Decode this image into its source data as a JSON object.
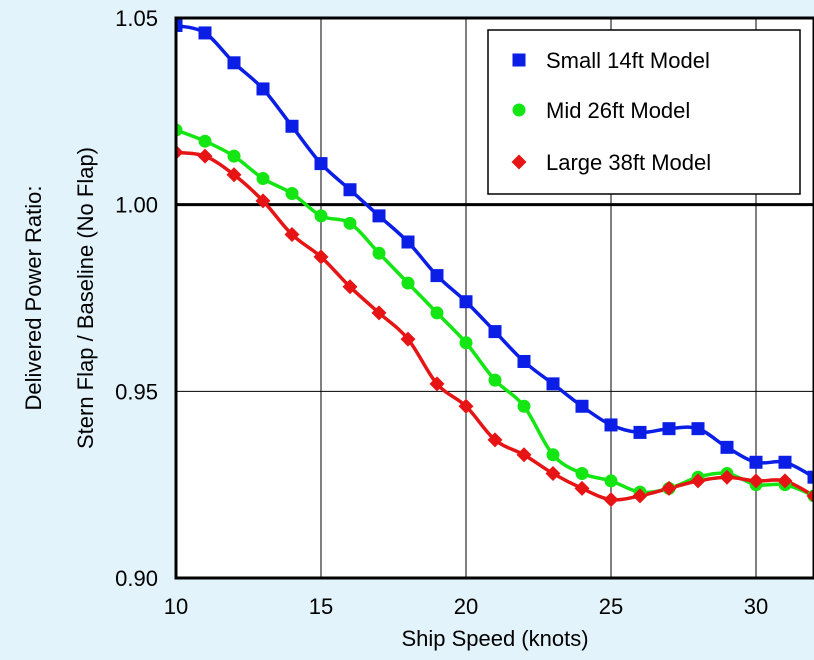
{
  "chart_data": {
    "type": "scatter",
    "title": "",
    "xlabel": "Ship Speed (knots)",
    "ylabel_lines": [
      "Delivered Power Ratio:",
      "Stern Flap / Baseline (No Flap)"
    ],
    "xlim": [
      10,
      32
    ],
    "ylim": [
      0.9,
      1.05
    ],
    "x_ticks": [
      10,
      15,
      20,
      25,
      30
    ],
    "x_tick_labels": [
      "10",
      "15",
      "20",
      "25",
      "30"
    ],
    "y_ticks": [
      0.9,
      0.95,
      1.0,
      1.05
    ],
    "y_tick_labels": [
      "0.90",
      "0.95",
      "1.00",
      "1.05"
    ],
    "reference_line_y": 1.0,
    "grid": true,
    "legend_position": "top-right",
    "series": [
      {
        "name": "Small 14ft Model",
        "marker": "square",
        "color": "#0a1ee6",
        "points": [
          [
            10,
            1.048
          ],
          [
            11,
            1.046
          ],
          [
            12,
            1.038
          ],
          [
            13,
            1.031
          ],
          [
            14,
            1.021
          ],
          [
            15,
            1.011
          ],
          [
            16,
            1.004
          ],
          [
            17,
            0.997
          ],
          [
            18,
            0.99
          ],
          [
            19,
            0.981
          ],
          [
            20,
            0.974
          ],
          [
            21,
            0.966
          ],
          [
            22,
            0.958
          ],
          [
            23,
            0.952
          ],
          [
            24,
            0.946
          ],
          [
            25,
            0.941
          ],
          [
            26,
            0.939
          ],
          [
            27,
            0.94
          ],
          [
            28,
            0.94
          ],
          [
            29,
            0.935
          ],
          [
            30,
            0.931
          ],
          [
            31,
            0.931
          ],
          [
            32,
            0.927
          ]
        ]
      },
      {
        "name": "Mid 26ft Model",
        "marker": "circle",
        "color": "#13e613",
        "points": [
          [
            10,
            1.02
          ],
          [
            11,
            1.017
          ],
          [
            12,
            1.013
          ],
          [
            13,
            1.007
          ],
          [
            14,
            1.003
          ],
          [
            15,
            0.997
          ],
          [
            16,
            0.995
          ],
          [
            17,
            0.987
          ],
          [
            18,
            0.979
          ],
          [
            19,
            0.971
          ],
          [
            20,
            0.963
          ],
          [
            21,
            0.953
          ],
          [
            22,
            0.946
          ],
          [
            23,
            0.933
          ],
          [
            24,
            0.928
          ],
          [
            25,
            0.926
          ],
          [
            26,
            0.923
          ],
          [
            27,
            0.924
          ],
          [
            28,
            0.927
          ],
          [
            29,
            0.928
          ],
          [
            30,
            0.925
          ],
          [
            31,
            0.925
          ],
          [
            32,
            0.922
          ]
        ]
      },
      {
        "name": "Large 38ft Model",
        "marker": "diamond",
        "color": "#e61414",
        "points": [
          [
            10,
            1.014
          ],
          [
            11,
            1.013
          ],
          [
            12,
            1.008
          ],
          [
            13,
            1.001
          ],
          [
            14,
            0.992
          ],
          [
            15,
            0.986
          ],
          [
            16,
            0.978
          ],
          [
            17,
            0.971
          ],
          [
            18,
            0.964
          ],
          [
            19,
            0.952
          ],
          [
            20,
            0.946
          ],
          [
            21,
            0.937
          ],
          [
            22,
            0.933
          ],
          [
            23,
            0.928
          ],
          [
            24,
            0.924
          ],
          [
            25,
            0.921
          ],
          [
            26,
            0.922
          ],
          [
            27,
            0.924
          ],
          [
            28,
            0.926
          ],
          [
            29,
            0.927
          ],
          [
            30,
            0.926
          ],
          [
            31,
            0.926
          ],
          [
            32,
            0.922
          ]
        ]
      }
    ]
  }
}
